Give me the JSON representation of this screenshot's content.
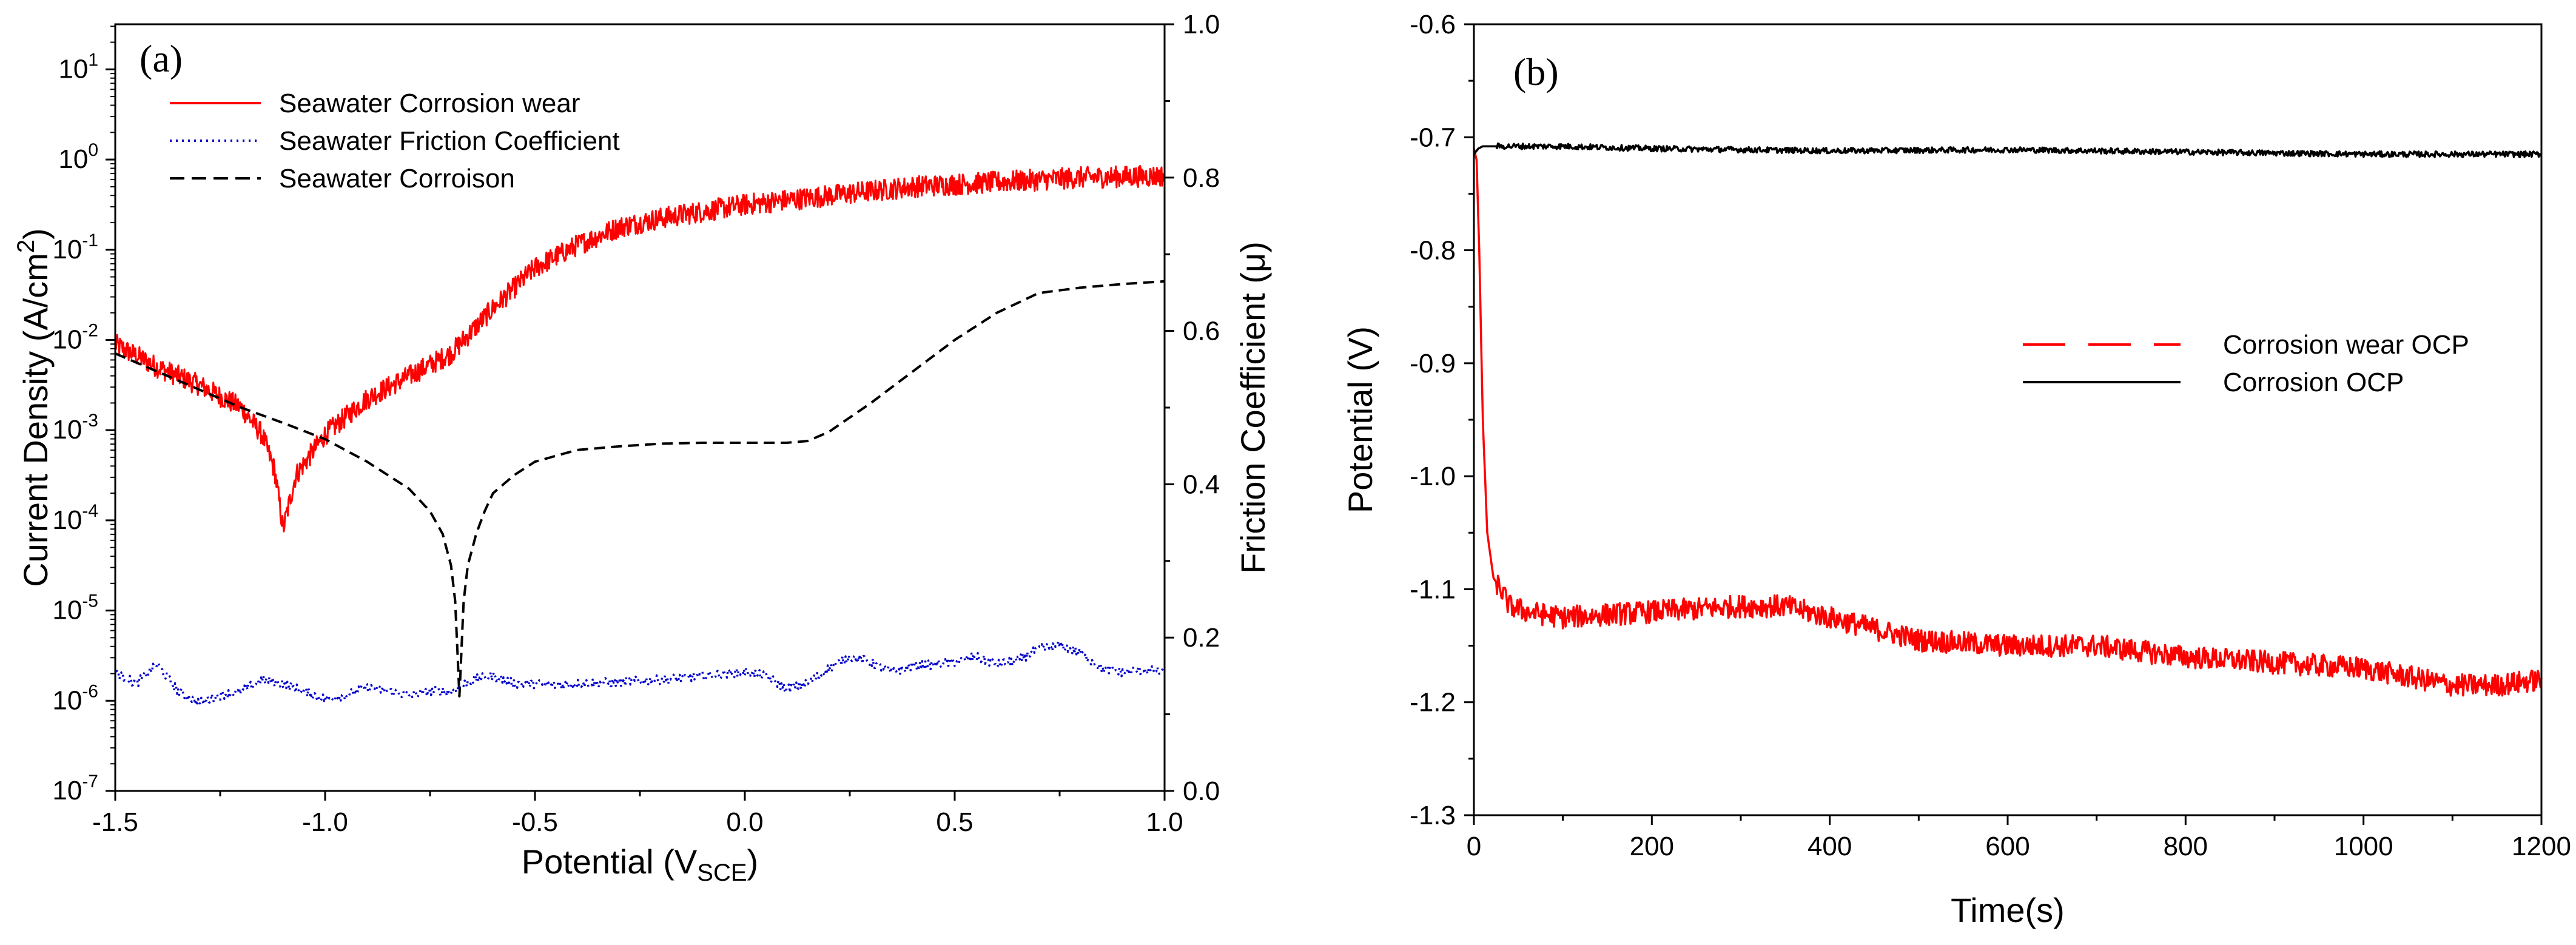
{
  "chart_data": [
    {
      "panel_label": "(a)",
      "type": "line",
      "xlabel": "Potential (V",
      "xlabel_sub": "SCE",
      "xlabel_close": ")",
      "ylabel_left": "Current Density  (A/cm",
      "ylabel_left_sup": "2",
      "ylabel_left_close": ")",
      "ylabel_right": "Friction Coefficient (μ)",
      "xlim": [
        -1.5,
        1.0
      ],
      "ylim_left_log10": [
        -7,
        1.5
      ],
      "ylim_right": [
        0.0,
        1.0
      ],
      "x_ticks": [
        "-1.5",
        "-1.0",
        "-0.5",
        "0.0",
        "0.5",
        "1.0"
      ],
      "x_tick_values": [
        -1.5,
        -1.0,
        -0.5,
        0.0,
        0.5,
        1.0
      ],
      "y_left_ticks": [
        {
          "base": "10",
          "exp": "-7",
          "value": -7
        },
        {
          "base": "10",
          "exp": "-6",
          "value": -6
        },
        {
          "base": "10",
          "exp": "-5",
          "value": -5
        },
        {
          "base": "10",
          "exp": "-4",
          "value": -4
        },
        {
          "base": "10",
          "exp": "-3",
          "value": -3
        },
        {
          "base": "10",
          "exp": "-2",
          "value": -2
        },
        {
          "base": "10",
          "exp": "-1",
          "value": -1
        },
        {
          "base": "10",
          "exp": "0",
          "value": 0
        },
        {
          "base": "10",
          "exp": "1",
          "value": 1
        }
      ],
      "y_right_ticks": [
        "0.0",
        "0.2",
        "0.4",
        "0.6",
        "0.8",
        "1.0"
      ],
      "y_right_tick_values": [
        0.0,
        0.2,
        0.4,
        0.6,
        0.8,
        1.0
      ],
      "legend": [
        {
          "name": "Seawater Corrosion wear",
          "color": "#ff0000",
          "dash": "solid"
        },
        {
          "name": "Seawater Friction Coefficient",
          "color": "#0000cc",
          "dash": "dotted"
        },
        {
          "name": "Seawater Corroison",
          "color": "#000000",
          "dash": "dashed"
        }
      ],
      "series": [
        {
          "name": "Seawater Corrosion wear",
          "axis": "left_log10",
          "color": "#ff0000",
          "x": [
            -1.5,
            -1.4,
            -1.3,
            -1.2,
            -1.15,
            -1.12,
            -1.1,
            -1.07,
            -1.0,
            -0.9,
            -0.8,
            -0.7,
            -0.6,
            -0.5,
            -0.4,
            -0.3,
            -0.2,
            0.0,
            0.2,
            0.4,
            0.6,
            0.8,
            1.0
          ],
          "y": [
            -2.05,
            -2.3,
            -2.5,
            -2.75,
            -3.05,
            -3.45,
            -4.1,
            -3.5,
            -3.05,
            -2.65,
            -2.4,
            -2.15,
            -1.65,
            -1.2,
            -0.95,
            -0.75,
            -0.65,
            -0.5,
            -0.4,
            -0.3,
            -0.25,
            -0.2,
            -0.18
          ],
          "noise": 0.12
        },
        {
          "name": "Seawater Corroison",
          "axis": "left_log10",
          "color": "#000000",
          "x": [
            -1.5,
            -1.4,
            -1.3,
            -1.2,
            -1.1,
            -1.0,
            -0.9,
            -0.8,
            -0.75,
            -0.72,
            -0.7,
            -0.69,
            -0.68,
            -0.67,
            -0.66,
            -0.64,
            -0.62,
            -0.6,
            -0.55,
            -0.5,
            -0.4,
            -0.3,
            -0.2,
            -0.1,
            0.0,
            0.1,
            0.15,
            0.2,
            0.3,
            0.4,
            0.5,
            0.6,
            0.7,
            0.8,
            0.9,
            1.0
          ],
          "y": [
            -2.15,
            -2.35,
            -2.55,
            -2.75,
            -2.92,
            -3.1,
            -3.35,
            -3.65,
            -3.9,
            -4.15,
            -4.5,
            -4.9,
            -5.95,
            -4.9,
            -4.5,
            -4.15,
            -3.9,
            -3.7,
            -3.5,
            -3.35,
            -3.22,
            -3.18,
            -3.15,
            -3.14,
            -3.14,
            -3.14,
            -3.12,
            -3.02,
            -2.7,
            -2.35,
            -2.0,
            -1.7,
            -1.48,
            -1.42,
            -1.38,
            -1.35
          ],
          "noise": 0.0
        },
        {
          "name": "Seawater Friction Coefficient",
          "axis": "right",
          "color": "#0000cc",
          "x": [
            -1.5,
            -1.45,
            -1.4,
            -1.35,
            -1.3,
            -1.25,
            -1.2,
            -1.15,
            -1.1,
            -1.05,
            -1.0,
            -0.95,
            -0.9,
            -0.85,
            -0.8,
            -0.75,
            -0.7,
            -0.65,
            -0.6,
            -0.55,
            -0.5,
            -0.45,
            -0.4,
            -0.3,
            -0.2,
            -0.1,
            0.0,
            0.05,
            0.1,
            0.15,
            0.2,
            0.25,
            0.3,
            0.35,
            0.4,
            0.45,
            0.5,
            0.55,
            0.6,
            0.65,
            0.7,
            0.75,
            0.8,
            0.85,
            0.9,
            0.95,
            1.0
          ],
          "y": [
            0.155,
            0.14,
            0.165,
            0.13,
            0.115,
            0.125,
            0.13,
            0.145,
            0.14,
            0.13,
            0.12,
            0.125,
            0.135,
            0.13,
            0.125,
            0.13,
            0.13,
            0.145,
            0.15,
            0.14,
            0.14,
            0.138,
            0.14,
            0.142,
            0.145,
            0.15,
            0.155,
            0.15,
            0.133,
            0.14,
            0.16,
            0.175,
            0.168,
            0.155,
            0.163,
            0.165,
            0.168,
            0.175,
            0.165,
            0.17,
            0.185,
            0.19,
            0.18,
            0.16,
            0.155,
            0.158,
            0.155
          ],
          "noise": 0.006
        }
      ]
    },
    {
      "panel_label": "(b)",
      "type": "line",
      "xlabel": "Time(s)",
      "ylabel": "Potential (V)",
      "xlim": [
        0,
        1200
      ],
      "ylim": [
        -1.3,
        -0.6
      ],
      "x_ticks": [
        "0",
        "200",
        "400",
        "600",
        "800",
        "1000",
        "1200"
      ],
      "x_tick_values": [
        0,
        200,
        400,
        600,
        800,
        1000,
        1200
      ],
      "y_ticks": [
        "-0.6",
        "-0.7",
        "-0.8",
        "-0.9",
        "-1.0",
        "-1.1",
        "-1.2",
        "-1.3"
      ],
      "y_tick_values": [
        -0.6,
        -0.7,
        -0.8,
        -0.9,
        -1.0,
        -1.1,
        -1.2,
        -1.3
      ],
      "legend": [
        {
          "name": "Corrosion wear OCP",
          "color": "#ff0000",
          "dash": "dashed"
        },
        {
          "name": "Corrosion OCP",
          "color": "#000000",
          "dash": "solid"
        }
      ],
      "series": [
        {
          "name": "Corrosion wear OCP",
          "color": "#ff0000",
          "x": [
            0,
            3,
            6,
            10,
            15,
            22,
            30,
            40,
            60,
            100,
            200,
            300,
            350,
            400,
            500,
            600,
            700,
            800,
            900,
            1000,
            1100,
            1150,
            1200
          ],
          "y": [
            -0.71,
            -0.72,
            -0.8,
            -0.95,
            -1.05,
            -1.09,
            -1.1,
            -1.115,
            -1.12,
            -1.125,
            -1.12,
            -1.115,
            -1.115,
            -1.125,
            -1.145,
            -1.15,
            -1.15,
            -1.16,
            -1.165,
            -1.17,
            -1.185,
            -1.185,
            -1.18
          ],
          "noise": 0.01
        },
        {
          "name": "Corrosion OCP",
          "color": "#000000",
          "x": [
            0,
            5,
            10,
            100,
            200,
            400,
            600,
            800,
            1000,
            1200
          ],
          "y": [
            -0.715,
            -0.71,
            -0.708,
            -0.708,
            -0.71,
            -0.712,
            -0.711,
            -0.713,
            -0.715,
            -0.715
          ],
          "noise": 0.0025
        }
      ]
    }
  ]
}
